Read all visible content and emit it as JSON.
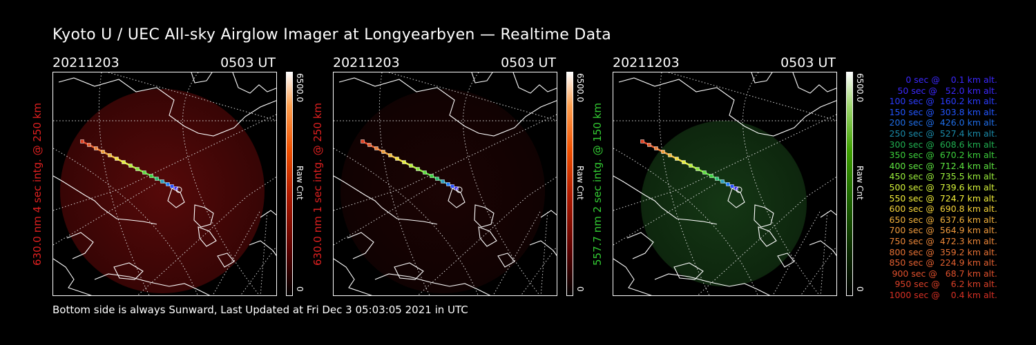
{
  "title": "Kyoto U / UEC All-sky Airglow Imager at Longyearbyen — Realtime Data",
  "footer": "Bottom side is always Sunward, Last Updated at Fri Dec  3 05:03:05 2021 in UTC",
  "colors": {
    "red_label": "#e02020",
    "green_label": "#33cc33",
    "red_glow": "#5a0a0a",
    "green_glow": "#103010"
  },
  "panels": [
    {
      "date": "20211203",
      "time": "0503 UT",
      "ylabel": "630.0 nm 4 sec intg. @ 250 km",
      "colorbar_max": "6500.0",
      "colorbar_unit": "Raw Cnt",
      "colorbar_min": "0",
      "color": "red"
    },
    {
      "date": "20211203",
      "time": "0503 UT",
      "ylabel": "630.0 nm 1 sec intg. @ 250 km",
      "colorbar_max": "6500.0",
      "colorbar_unit": "Raw Cnt",
      "colorbar_min": "0",
      "color": "red"
    },
    {
      "date": "20211203",
      "time": "0503 UT",
      "ylabel": "557.7 nm 2 sec intg. @ 150 km",
      "colorbar_max": "6500.0",
      "colorbar_unit": "Raw Cnt",
      "colorbar_min": "0",
      "color": "green"
    }
  ],
  "legend": [
    {
      "text": "   0 sec @    0.1 km alt.",
      "color": "#3c28ff"
    },
    {
      "text": "  50 sec @   52.0 km alt.",
      "color": "#3c28ff"
    },
    {
      "text": " 100 sec @  160.2 km alt.",
      "color": "#2b3cff"
    },
    {
      "text": " 150 sec @  303.8 km alt.",
      "color": "#2256ff"
    },
    {
      "text": " 200 sec @  426.0 km alt.",
      "color": "#1f6ee8"
    },
    {
      "text": " 250 sec @  527.4 km alt.",
      "color": "#1a8aa8"
    },
    {
      "text": " 300 sec @  608.6 km alt.",
      "color": "#20b050"
    },
    {
      "text": " 350 sec @  670.2 km alt.",
      "color": "#3cd03c"
    },
    {
      "text": " 400 sec @  712.4 km alt.",
      "color": "#5ee640"
    },
    {
      "text": " 450 sec @  735.5 km alt.",
      "color": "#9af03c"
    },
    {
      "text": " 500 sec @  739.6 km alt.",
      "color": "#d6f43a"
    },
    {
      "text": " 550 sec @  724.7 km alt.",
      "color": "#f4f03a"
    },
    {
      "text": " 600 sec @  690.8 km alt.",
      "color": "#f8d63a"
    },
    {
      "text": " 650 sec @  637.6 km alt.",
      "color": "#f4b23c"
    },
    {
      "text": " 700 sec @  564.9 km alt.",
      "color": "#f09a3c"
    },
    {
      "text": " 750 sec @  472.3 km alt.",
      "color": "#ec8638"
    },
    {
      "text": " 800 sec @  359.2 km alt.",
      "color": "#e87234"
    },
    {
      "text": " 850 sec @  224.9 km alt.",
      "color": "#e46030"
    },
    {
      "text": " 900 sec @   68.7 km alt.",
      "color": "#e0502c"
    },
    {
      "text": " 950 sec @    6.2 km alt.",
      "color": "#dc4028"
    },
    {
      "text": "1000 sec @    0.4 km alt.",
      "color": "#d83024"
    }
  ]
}
